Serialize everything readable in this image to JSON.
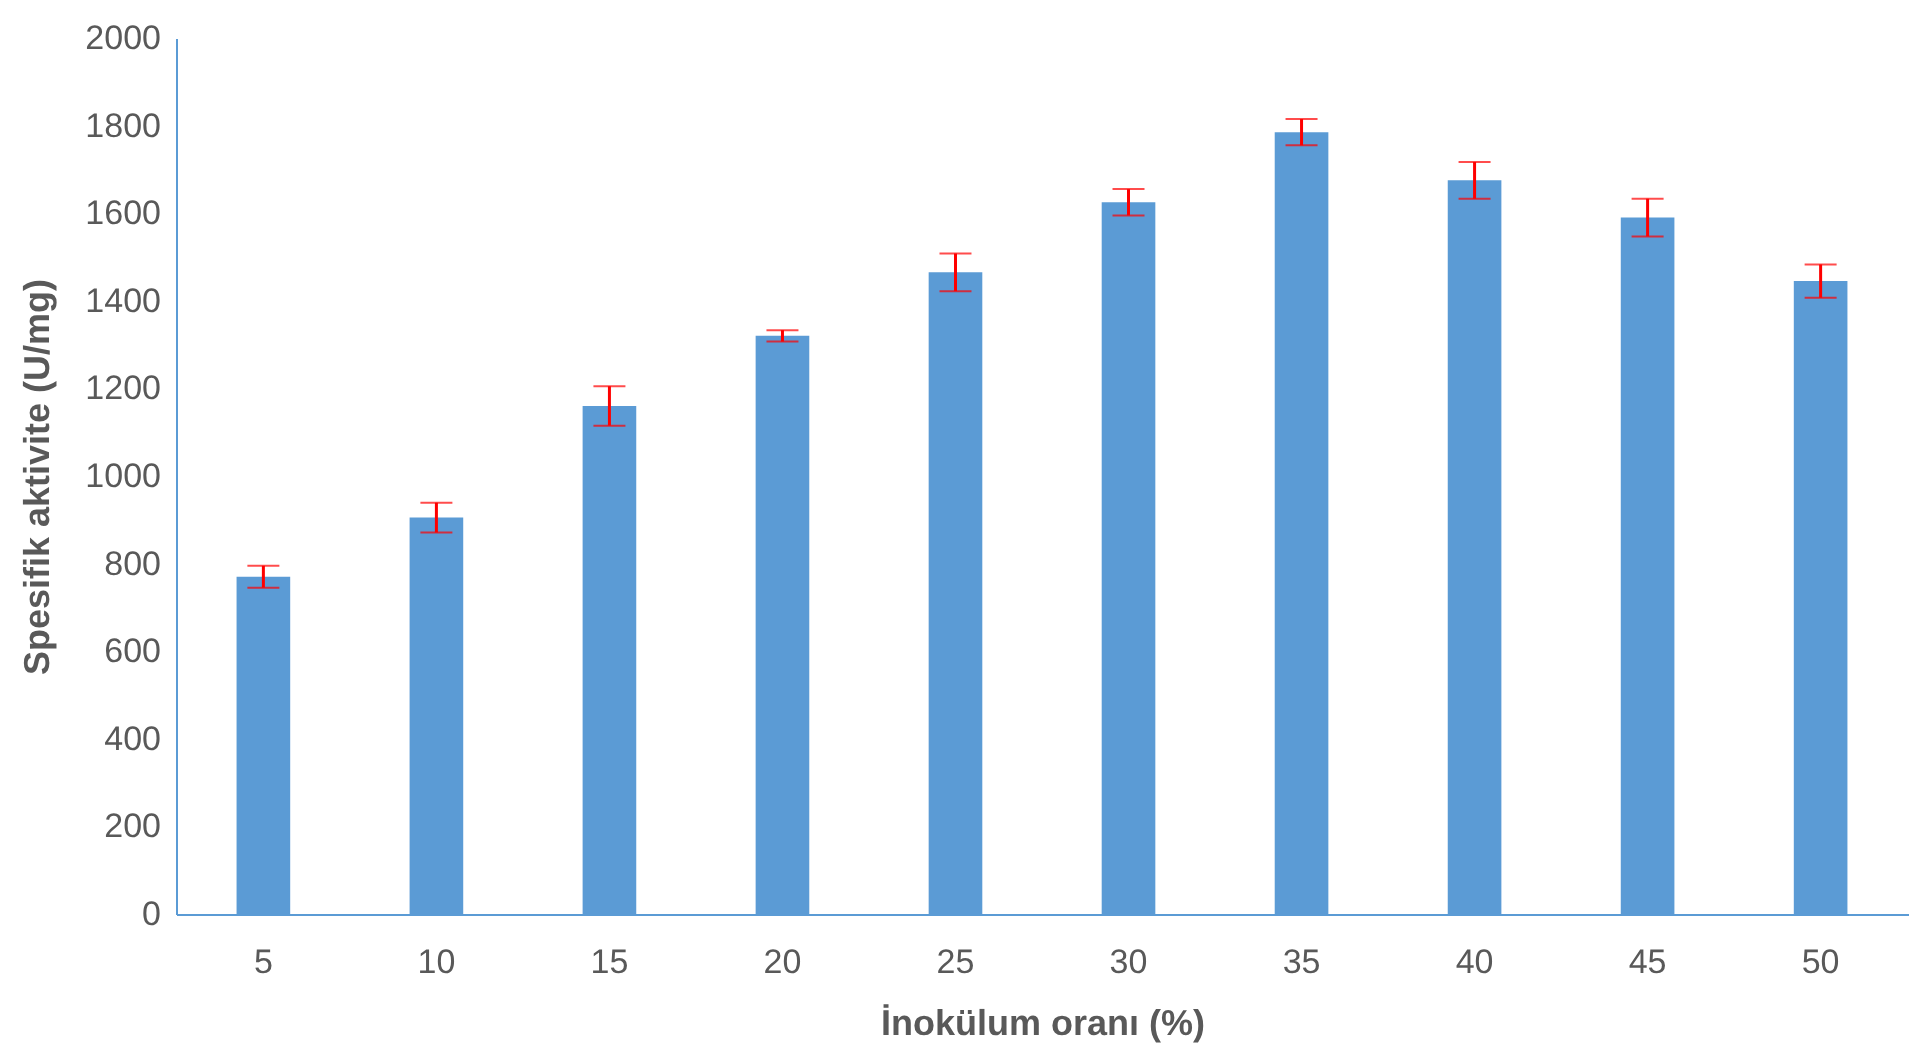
{
  "chart_data": {
    "type": "bar",
    "xlabel": "İnokülum oranı (%)",
    "ylabel": "Spesifik aktivite (U/mg)",
    "categories": [
      "5",
      "10",
      "15",
      "20",
      "25",
      "30",
      "35",
      "40",
      "45",
      "50"
    ],
    "series": [
      {
        "color": "#5b9bd5",
        "values": [
          770,
          905,
          1160,
          1320,
          1465,
          1625,
          1785,
          1675,
          1590,
          1445
        ],
        "errors": [
          25,
          34,
          45,
          13,
          43,
          30,
          30,
          42,
          43,
          38
        ]
      }
    ],
    "ylim": [
      0,
      2000
    ],
    "yticks": [
      0,
      200,
      400,
      600,
      800,
      1000,
      1200,
      1400,
      1600,
      1800,
      2000
    ],
    "grid": false
  }
}
